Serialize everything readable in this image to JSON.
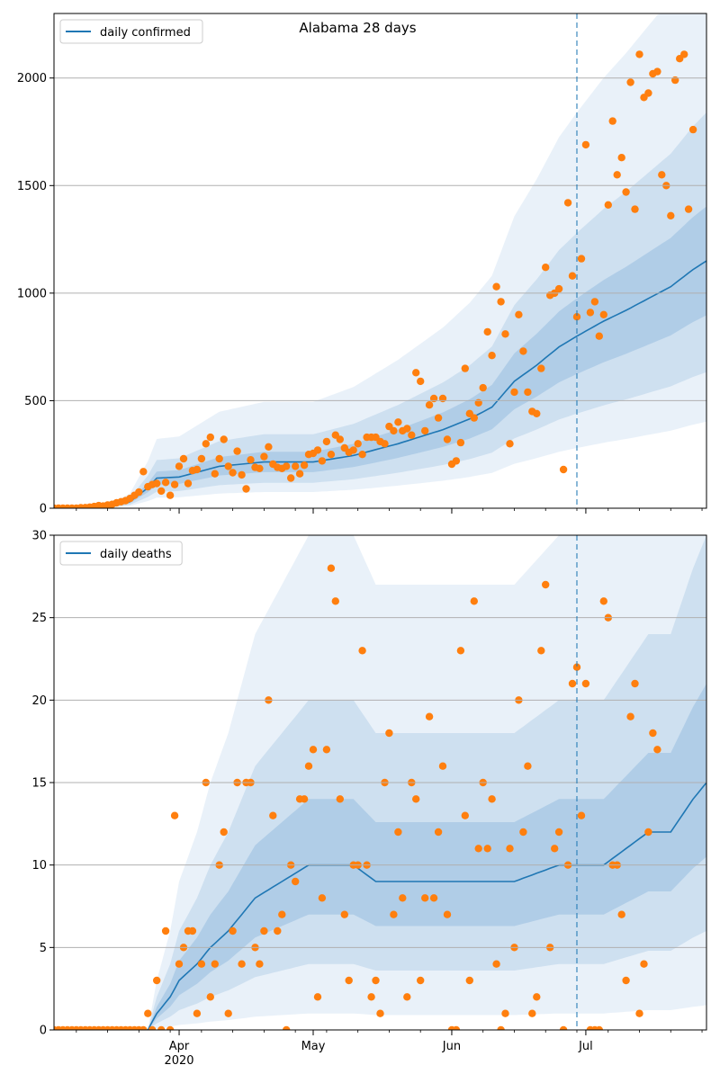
{
  "figure_title": "Alabama 28 days",
  "colors": {
    "line": "#1f77b4",
    "observed": "#ff7f0e",
    "band": "#2a78c2",
    "grid": "#b0b0b0",
    "divider": "#1f77b4"
  },
  "chart_data": [
    {
      "type": "line",
      "title": "Alabama 28 days",
      "xlabel": "",
      "ylabel": "",
      "x_range": [
        "2020-03-04",
        "2020-07-28"
      ],
      "ylim": [
        0,
        2300
      ],
      "y_ticks": [
        0,
        500,
        1000,
        1500,
        2000
      ],
      "grid": "horizontal",
      "legend_position": "top-left",
      "forecast_start": "2020-06-29",
      "median_series": {
        "name": "daily confirmed",
        "anchors": [
          [
            "2020-03-04",
            0
          ],
          [
            "2020-03-15",
            0
          ],
          [
            "2020-03-21",
            30
          ],
          [
            "2020-03-25",
            95
          ],
          [
            "2020-03-27",
            140
          ],
          [
            "2020-04-01",
            145
          ],
          [
            "2020-04-10",
            195
          ],
          [
            "2020-04-20",
            215
          ],
          [
            "2020-05-01",
            215
          ],
          [
            "2020-05-10",
            245
          ],
          [
            "2020-05-20",
            300
          ],
          [
            "2020-05-30",
            365
          ],
          [
            "2020-06-05",
            415
          ],
          [
            "2020-06-10",
            470
          ],
          [
            "2020-06-15",
            590
          ],
          [
            "2020-06-20",
            665
          ],
          [
            "2020-06-25",
            750
          ],
          [
            "2020-06-29",
            800
          ],
          [
            "2020-07-05",
            870
          ],
          [
            "2020-07-10",
            920
          ],
          [
            "2020-07-15",
            975
          ],
          [
            "2020-07-20",
            1030
          ],
          [
            "2020-07-25",
            1110
          ],
          [
            "2020-07-28",
            1150
          ]
        ]
      },
      "bands": {
        "p50_ratio": [
          0.78,
          1.22
        ],
        "p80_ratio": [
          0.55,
          1.6
        ],
        "p95_ratio": [
          0.35,
          2.3
        ]
      },
      "observed": {
        "name": "observed daily confirmed",
        "start": "2020-03-04",
        "values": [
          0,
          0,
          0,
          0,
          0,
          0,
          2,
          3,
          5,
          8,
          12,
          10,
          15,
          18,
          25,
          30,
          35,
          45,
          60,
          75,
          170,
          100,
          110,
          115,
          80,
          120,
          60,
          110,
          195,
          230,
          115,
          175,
          180,
          230,
          300,
          330,
          160,
          230,
          320,
          195,
          165,
          265,
          155,
          90,
          225,
          190,
          185,
          240,
          285,
          205,
          190,
          185,
          195,
          140,
          195,
          160,
          200,
          250,
          255,
          270,
          220,
          310,
          250,
          340,
          320,
          280,
          260,
          270,
          300,
          250,
          330,
          330,
          330,
          310,
          300,
          380,
          360,
          400,
          360,
          370,
          340,
          630,
          590,
          360,
          480,
          510,
          420,
          510,
          320,
          205,
          220,
          305,
          650,
          440,
          420,
          490,
          560,
          820,
          710,
          1030,
          960,
          810,
          300,
          540,
          900,
          730,
          540,
          450,
          440,
          650,
          1120,
          990,
          1000,
          1020,
          180,
          1420,
          1080,
          890,
          1160,
          1690,
          910,
          960,
          800,
          900,
          1410,
          1800,
          1550,
          1630,
          1470,
          1980,
          1390,
          2110,
          1910,
          1930,
          2020,
          2030,
          1550,
          1500,
          1360,
          1990,
          2090,
          2110,
          1390,
          1760
        ]
      }
    },
    {
      "type": "line",
      "title": "",
      "xlabel": "",
      "ylabel": "",
      "x_range": [
        "2020-03-04",
        "2020-07-28"
      ],
      "ylim": [
        0,
        30
      ],
      "y_ticks": [
        0,
        5,
        10,
        15,
        20,
        25,
        30
      ],
      "grid": "horizontal",
      "legend_position": "top-left",
      "forecast_start": "2020-06-29",
      "median_series": {
        "name": "daily deaths",
        "anchors": [
          [
            "2020-03-04",
            0
          ],
          [
            "2020-03-25",
            0
          ],
          [
            "2020-03-27",
            1
          ],
          [
            "2020-03-30",
            2
          ],
          [
            "2020-04-01",
            3
          ],
          [
            "2020-04-05",
            4
          ],
          [
            "2020-04-08",
            5
          ],
          [
            "2020-04-12",
            6
          ],
          [
            "2020-04-15",
            7
          ],
          [
            "2020-04-18",
            8
          ],
          [
            "2020-04-24",
            9
          ],
          [
            "2020-04-30",
            10
          ],
          [
            "2020-05-10",
            10
          ],
          [
            "2020-05-15",
            9
          ],
          [
            "2020-06-05",
            9
          ],
          [
            "2020-06-15",
            9
          ],
          [
            "2020-06-25",
            10
          ],
          [
            "2020-06-29",
            10
          ],
          [
            "2020-07-05",
            10
          ],
          [
            "2020-07-10",
            11
          ],
          [
            "2020-07-15",
            12
          ],
          [
            "2020-07-20",
            12
          ],
          [
            "2020-07-25",
            14
          ],
          [
            "2020-07-28",
            15
          ]
        ]
      },
      "bands": {
        "p50_ratio": [
          0.7,
          1.4
        ],
        "p80_ratio": [
          0.4,
          2.0
        ],
        "p95_ratio": [
          0.1,
          3.0
        ]
      },
      "observed": {
        "name": "observed daily deaths",
        "start": "2020-03-04",
        "values": [
          0,
          0,
          0,
          0,
          0,
          0,
          0,
          0,
          0,
          0,
          0,
          0,
          0,
          0,
          0,
          0,
          0,
          0,
          0,
          0,
          0,
          1,
          0,
          3,
          0,
          6,
          0,
          13,
          4,
          5,
          6,
          6,
          1,
          4,
          15,
          2,
          4,
          10,
          12,
          1,
          6,
          15,
          4,
          15,
          15,
          5,
          4,
          6,
          20,
          13,
          6,
          7,
          0,
          10,
          9,
          14,
          14,
          16,
          17,
          2,
          8,
          17,
          28,
          26,
          14,
          7,
          3,
          10,
          10,
          23,
          10,
          2,
          3,
          1,
          15,
          18,
          7,
          12,
          8,
          2,
          15,
          14,
          3,
          8,
          19,
          8,
          12,
          16,
          7,
          0,
          0,
          23,
          13,
          3,
          26,
          11,
          15,
          11,
          14,
          4,
          0,
          1,
          11,
          5,
          20,
          12,
          16,
          1,
          2,
          23,
          27,
          5,
          11,
          12,
          0,
          10,
          21,
          22,
          13,
          21,
          0,
          0,
          0,
          26,
          25,
          10,
          10,
          7,
          3,
          19,
          21,
          1,
          4,
          12,
          18,
          17
        ]
      }
    }
  ],
  "x_axis": {
    "ticks": [
      {
        "date": "2020-04-01",
        "label": "Apr",
        "sublabel": "2020"
      },
      {
        "date": "2020-05-01",
        "label": "May",
        "sublabel": ""
      },
      {
        "date": "2020-06-01",
        "label": "Jun",
        "sublabel": ""
      },
      {
        "date": "2020-07-01",
        "label": "Jul",
        "sublabel": ""
      }
    ]
  }
}
